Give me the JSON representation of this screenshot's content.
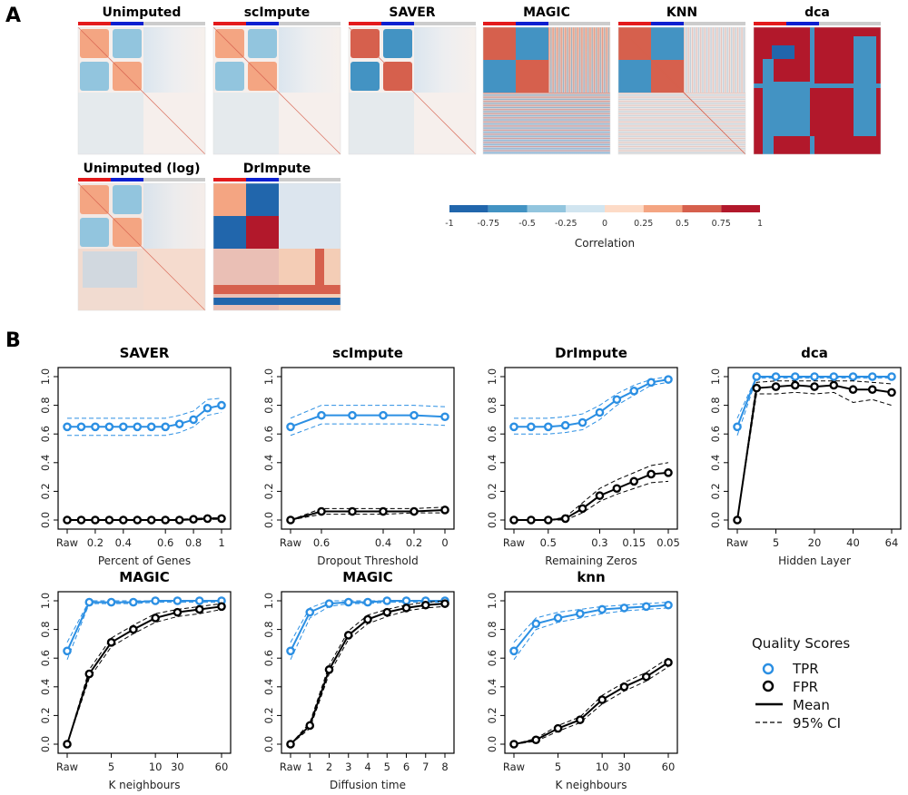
{
  "panel_labels": {
    "a": "A",
    "b": "B"
  },
  "colors": {
    "tpr": "#2b8fe3",
    "fpr": "#000000",
    "heat_scale": [
      "#2166ac",
      "#4393c3",
      "#92c5de",
      "#d1e5f0",
      "#fddbc7",
      "#f4a582",
      "#d6604d",
      "#b2182b"
    ],
    "group_bar": [
      "#e31a1c",
      "#0b1fd0",
      "#cccccc"
    ]
  },
  "heatmaps": {
    "titles": [
      "Unimputed",
      "scImpute",
      "SAVER",
      "MAGIC",
      "KNN",
      "dca",
      "Unimputed (log)",
      "DrImpute"
    ]
  },
  "colorbar": {
    "label": "Correlation",
    "ticks": [
      "-1",
      "-0.75",
      "-0.5",
      "-0.25",
      "0",
      "0.25",
      "0.5",
      "0.75",
      "1"
    ]
  },
  "legend": {
    "title": "Quality Scores",
    "items": [
      "TPR",
      "FPR",
      "Mean",
      "95% CI"
    ]
  },
  "chart_data": [
    {
      "type": "line",
      "title": "SAVER",
      "xlabel": "Percent of Genes",
      "ylabel": "",
      "xticks": [
        "Raw",
        "0.2",
        "0.4",
        "0.6",
        "0.8",
        "1"
      ],
      "ylim": [
        0,
        1
      ],
      "yticks": [
        "0.0",
        "0.2",
        "0.4",
        "0.6",
        "0.8",
        "1.0"
      ],
      "series": [
        {
          "name": "TPR",
          "values": [
            0.65,
            0.65,
            0.65,
            0.65,
            0.65,
            0.65,
            0.65,
            0.65,
            0.67,
            0.7,
            0.78,
            0.8
          ],
          "ci_low": [
            0.59,
            0.59,
            0.59,
            0.59,
            0.59,
            0.59,
            0.59,
            0.59,
            0.61,
            0.65,
            0.73,
            0.75
          ],
          "ci_high": [
            0.71,
            0.71,
            0.71,
            0.71,
            0.71,
            0.71,
            0.71,
            0.71,
            0.73,
            0.76,
            0.84,
            0.85
          ]
        },
        {
          "name": "FPR",
          "values": [
            0,
            0,
            0,
            0,
            0,
            0,
            0,
            0,
            0,
            0.005,
            0.01,
            0.01
          ],
          "ci_low": [
            0,
            0,
            0,
            0,
            0,
            0,
            0,
            0,
            0,
            0,
            0.005,
            0.005
          ],
          "ci_high": [
            0,
            0,
            0,
            0,
            0,
            0,
            0,
            0,
            0.005,
            0.01,
            0.015,
            0.015
          ]
        }
      ]
    },
    {
      "type": "line",
      "title": "scImpute",
      "xlabel": "Dropout Threshold",
      "ylabel": "",
      "xticks": [
        "Raw",
        "0.6",
        "0.4",
        "0.2",
        "0"
      ],
      "ylim": [
        0,
        1
      ],
      "yticks": [
        "0.0",
        "0.2",
        "0.4",
        "0.6",
        "0.8",
        "1.0"
      ],
      "series": [
        {
          "name": "TPR",
          "values": [
            0.65,
            0.73,
            0.73,
            0.73,
            0.73,
            0.72
          ],
          "ci_low": [
            0.59,
            0.67,
            0.67,
            0.67,
            0.67,
            0.66
          ],
          "ci_high": [
            0.71,
            0.8,
            0.8,
            0.8,
            0.8,
            0.79
          ]
        },
        {
          "name": "FPR",
          "values": [
            0,
            0.06,
            0.06,
            0.06,
            0.06,
            0.07
          ],
          "ci_low": [
            0,
            0.04,
            0.04,
            0.04,
            0.05,
            0.05
          ],
          "ci_high": [
            0,
            0.08,
            0.08,
            0.08,
            0.08,
            0.09
          ]
        }
      ]
    },
    {
      "type": "line",
      "title": "DrImpute",
      "xlabel": "Remaining Zeros",
      "ylabel": "",
      "xticks": [
        "Raw",
        "0.5",
        "0.3",
        "0.15",
        "0.05"
      ],
      "ylim": [
        0,
        1
      ],
      "yticks": [
        "0.0",
        "0.2",
        "0.4",
        "0.6",
        "0.8",
        "1.0"
      ],
      "series": [
        {
          "name": "TPR",
          "values": [
            0.65,
            0.65,
            0.65,
            0.66,
            0.68,
            0.75,
            0.84,
            0.9,
            0.96,
            0.98
          ],
          "ci_low": [
            0.6,
            0.6,
            0.6,
            0.61,
            0.63,
            0.7,
            0.8,
            0.87,
            0.94,
            0.96
          ],
          "ci_high": [
            0.71,
            0.71,
            0.71,
            0.72,
            0.74,
            0.8,
            0.88,
            0.94,
            0.98,
            1.0
          ]
        },
        {
          "name": "FPR",
          "values": [
            0,
            0,
            0,
            0.01,
            0.08,
            0.17,
            0.22,
            0.27,
            0.32,
            0.33
          ],
          "ci_low": [
            0,
            0,
            0,
            0,
            0.05,
            0.13,
            0.18,
            0.22,
            0.26,
            0.27
          ],
          "ci_high": [
            0,
            0,
            0,
            0.02,
            0.12,
            0.22,
            0.28,
            0.33,
            0.38,
            0.4
          ]
        }
      ]
    },
    {
      "type": "line",
      "title": "dca",
      "xlabel": "Hidden Layer",
      "ylabel": "",
      "xticks": [
        "Raw",
        "5",
        "20",
        "40",
        "64"
      ],
      "ylim": [
        0,
        1
      ],
      "yticks": [
        "0.0",
        "0.2",
        "0.4",
        "0.6",
        "0.8",
        "1.0"
      ],
      "series": [
        {
          "name": "TPR",
          "values": [
            0.65,
            1.0,
            1.0,
            1.0,
            1.0,
            1.0,
            1.0,
            1.0,
            1.0
          ],
          "ci_low": [
            0.59,
            0.99,
            0.99,
            0.99,
            0.99,
            0.99,
            0.99,
            0.99,
            0.99
          ],
          "ci_high": [
            0.71,
            1.0,
            1.0,
            1.0,
            1.0,
            1.0,
            1.0,
            1.0,
            1.0
          ]
        },
        {
          "name": "FPR",
          "values": [
            0,
            0.92,
            0.93,
            0.94,
            0.93,
            0.94,
            0.91,
            0.91,
            0.89
          ],
          "ci_low": [
            0,
            0.88,
            0.88,
            0.89,
            0.88,
            0.89,
            0.82,
            0.84,
            0.8
          ],
          "ci_high": [
            0,
            0.96,
            0.97,
            0.97,
            0.97,
            0.97,
            0.97,
            0.96,
            0.95
          ]
        }
      ]
    },
    {
      "type": "line",
      "title": "MAGIC",
      "xlabel": "K neighbours",
      "ylabel": "",
      "xticks": [
        "Raw",
        "5",
        "10",
        "30",
        "60"
      ],
      "ylim": [
        0,
        1
      ],
      "yticks": [
        "0.0",
        "0.2",
        "0.4",
        "0.6",
        "0.8",
        "1.0"
      ],
      "series": [
        {
          "name": "TPR",
          "values": [
            0.65,
            0.99,
            0.99,
            0.99,
            1.0,
            1.0,
            1.0,
            1.0
          ],
          "ci_low": [
            0.59,
            0.98,
            0.98,
            0.98,
            0.99,
            0.99,
            0.99,
            0.99
          ],
          "ci_high": [
            0.71,
            1.0,
            1.0,
            1.0,
            1.0,
            1.0,
            1.0,
            1.0
          ]
        },
        {
          "name": "FPR",
          "values": [
            0,
            0.49,
            0.71,
            0.8,
            0.88,
            0.92,
            0.94,
            0.96
          ],
          "ci_low": [
            0,
            0.46,
            0.68,
            0.77,
            0.85,
            0.89,
            0.91,
            0.94
          ],
          "ci_high": [
            0,
            0.52,
            0.74,
            0.83,
            0.91,
            0.94,
            0.96,
            0.98
          ]
        }
      ]
    },
    {
      "type": "line",
      "title": "MAGIC",
      "xlabel": "Diffusion time",
      "ylabel": "",
      "xticks": [
        "Raw",
        "1",
        "2",
        "3",
        "4",
        "5",
        "6",
        "7",
        "8"
      ],
      "ylim": [
        0,
        1
      ],
      "yticks": [
        "0.0",
        "0.2",
        "0.4",
        "0.6",
        "0.8",
        "1.0"
      ],
      "series": [
        {
          "name": "TPR",
          "values": [
            0.65,
            0.92,
            0.98,
            0.99,
            0.99,
            1.0,
            1.0,
            1.0,
            1.0
          ],
          "ci_low": [
            0.59,
            0.88,
            0.96,
            0.98,
            0.98,
            0.99,
            0.99,
            0.99,
            0.99
          ],
          "ci_high": [
            0.71,
            0.95,
            1.0,
            1.0,
            1.0,
            1.0,
            1.0,
            1.0,
            1.0
          ]
        },
        {
          "name": "FPR",
          "values": [
            0,
            0.13,
            0.52,
            0.76,
            0.87,
            0.92,
            0.95,
            0.97,
            0.98
          ],
          "ci_low": [
            0,
            0.11,
            0.49,
            0.73,
            0.84,
            0.89,
            0.93,
            0.95,
            0.96
          ],
          "ci_high": [
            0,
            0.15,
            0.55,
            0.79,
            0.9,
            0.94,
            0.97,
            0.99,
            1.0
          ]
        }
      ]
    },
    {
      "type": "line",
      "title": "knn",
      "xlabel": "K neighbours",
      "ylabel": "",
      "xticks": [
        "Raw",
        "5",
        "10",
        "30",
        "60"
      ],
      "ylim": [
        0,
        1
      ],
      "yticks": [
        "0.0",
        "0.2",
        "0.4",
        "0.6",
        "0.8",
        "1.0"
      ],
      "series": [
        {
          "name": "TPR",
          "values": [
            0.65,
            0.84,
            0.88,
            0.91,
            0.94,
            0.95,
            0.96,
            0.97
          ],
          "ci_low": [
            0.59,
            0.8,
            0.85,
            0.88,
            0.91,
            0.93,
            0.94,
            0.95
          ],
          "ci_high": [
            0.71,
            0.88,
            0.92,
            0.94,
            0.96,
            0.97,
            0.98,
            0.99
          ]
        },
        {
          "name": "FPR",
          "values": [
            0,
            0.03,
            0.11,
            0.17,
            0.31,
            0.4,
            0.47,
            0.57
          ],
          "ci_low": [
            0,
            0.02,
            0.09,
            0.15,
            0.28,
            0.37,
            0.44,
            0.54
          ],
          "ci_high": [
            0,
            0.04,
            0.13,
            0.19,
            0.34,
            0.43,
            0.5,
            0.6
          ]
        }
      ]
    }
  ]
}
